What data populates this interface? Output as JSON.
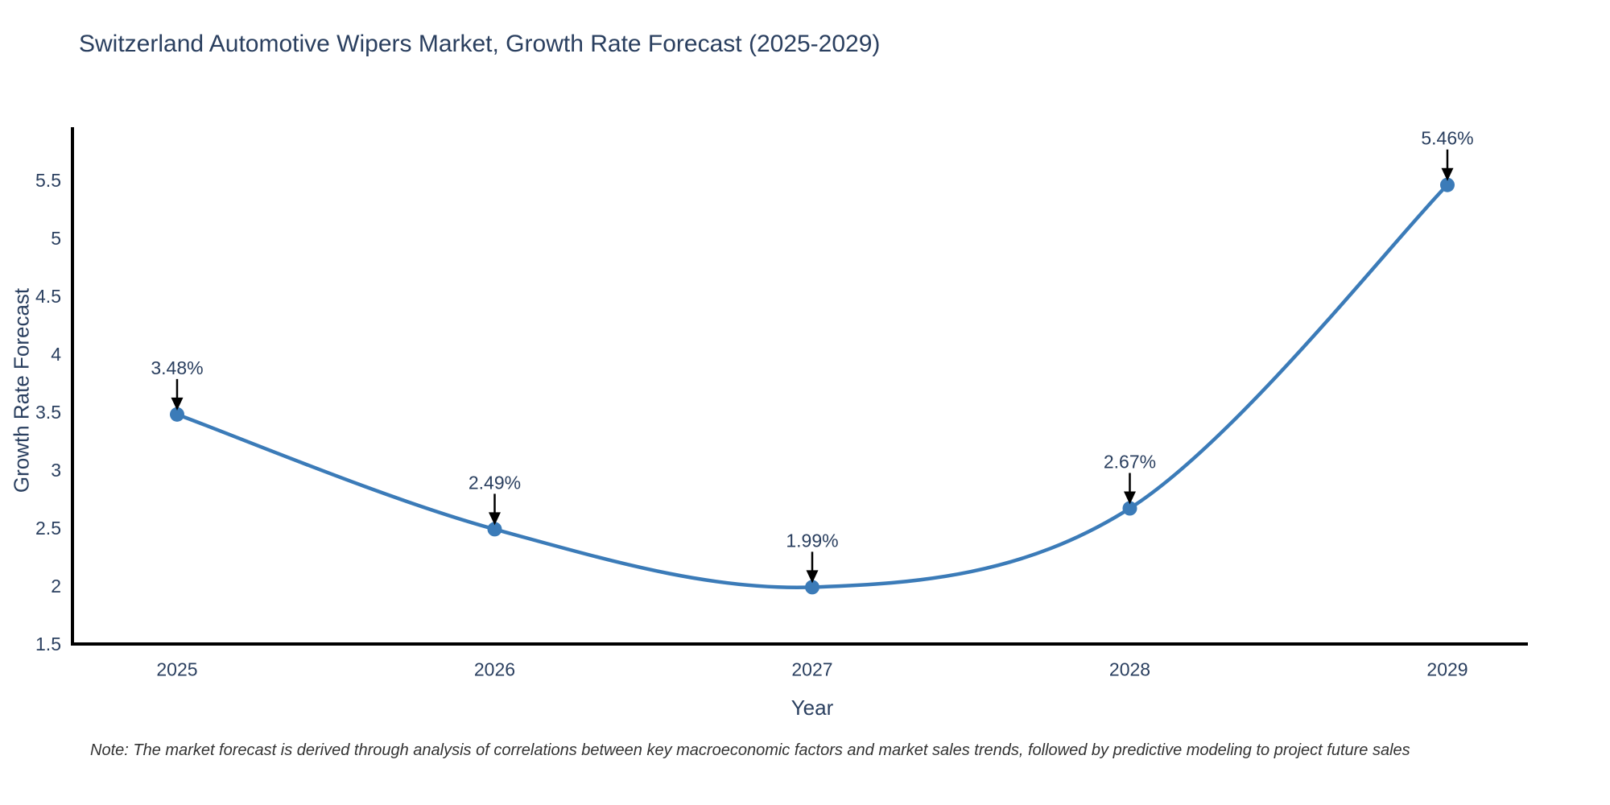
{
  "page": {
    "background": "#ffffff"
  },
  "chart_data": {
    "type": "line",
    "title": "Switzerland Automotive Wipers Market, Growth Rate Forecast (2025-2029)",
    "xlabel": "Year",
    "ylabel": "Growth Rate Forecast",
    "categories": [
      2025,
      2026,
      2027,
      2028,
      2029
    ],
    "values": [
      3.48,
      2.49,
      1.99,
      2.67,
      5.46
    ],
    "point_labels": [
      "3.48%",
      "2.49%",
      "1.99%",
      "2.67%",
      "5.46%"
    ],
    "x_tick_labels": [
      "2025",
      "2026",
      "2027",
      "2028",
      "2029"
    ],
    "y_tick_values": [
      1.5,
      2,
      2.5,
      3,
      3.5,
      4,
      4.5,
      5,
      5.5
    ],
    "y_tick_labels": [
      "1.5",
      "2",
      "2.5",
      "3",
      "3.5",
      "4",
      "4.5",
      "5",
      "5.5"
    ],
    "xlim": [
      2024.6705,
      2029.2535
    ],
    "ylim": [
      1.5,
      5.944
    ],
    "line_shape": "spline",
    "grid": false,
    "legend": "none",
    "colors": {
      "line": "#3b7bb8",
      "marker": "#3b7bb8",
      "axis": "#000000",
      "text": "#2a3f5f",
      "annotation_arrow": "#000000",
      "note_text": "#333333"
    }
  },
  "note": "Note: The market forecast is derived through analysis of correlations between key macroeconomic factors and market sales trends, followed by predictive modeling to project future sales"
}
